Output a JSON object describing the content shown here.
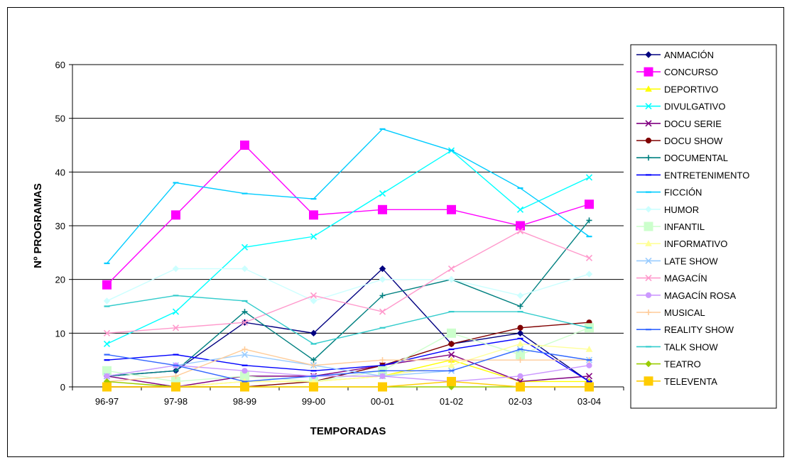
{
  "chart_data": {
    "type": "line",
    "title": "",
    "xlabel": "TEMPORADAS",
    "ylabel": "Nº PROGRAMAS",
    "ylim": [
      0,
      60
    ],
    "yticks": [
      0,
      10,
      20,
      30,
      40,
      50,
      60
    ],
    "grid": "horizontal",
    "legend_position": "right",
    "categories": [
      "96-97",
      "97-98",
      "98-99",
      "99-00",
      "00-01",
      "01-02",
      "02-03",
      "03-04"
    ],
    "series": [
      {
        "name": "ANMACIÓN",
        "color": "#000080",
        "marker": "diamond",
        "values": [
          2,
          3,
          12,
          10,
          22,
          8,
          10,
          1
        ]
      },
      {
        "name": "CONCURSO",
        "color": "#ff00ff",
        "marker": "square",
        "values": [
          19,
          32,
          45,
          32,
          33,
          33,
          30,
          34
        ]
      },
      {
        "name": "DEPORTIVO",
        "color": "#ffff00",
        "marker": "triangle",
        "values": [
          0,
          0,
          1,
          1,
          2,
          5,
          1,
          1
        ]
      },
      {
        "name": "DIVULGATIVO",
        "color": "#00ffff",
        "marker": "x",
        "values": [
          8,
          14,
          26,
          28,
          36,
          44,
          33,
          39
        ]
      },
      {
        "name": "DOCU SERIE",
        "color": "#800080",
        "marker": "x",
        "values": [
          2,
          0,
          2,
          2,
          4,
          6,
          1,
          2
        ]
      },
      {
        "name": "DOCU SHOW",
        "color": "#800000",
        "marker": "circle",
        "values": [
          0,
          0,
          0,
          1,
          4,
          8,
          11,
          12
        ]
      },
      {
        "name": "DOCUMENTAL",
        "color": "#008080",
        "marker": "plus",
        "values": [
          2,
          3,
          14,
          5,
          17,
          20,
          15,
          31
        ]
      },
      {
        "name": "ENTRETENIMENTO",
        "color": "#0000ff",
        "marker": "dash",
        "values": [
          5,
          6,
          4,
          3,
          4,
          7,
          9,
          1
        ]
      },
      {
        "name": "FICCIÓN",
        "color": "#00ccff",
        "marker": "dash",
        "values": [
          23,
          38,
          36,
          35,
          48,
          44,
          37,
          28
        ]
      },
      {
        "name": "HUMOR",
        "color": "#ccffff",
        "marker": "diamond",
        "values": [
          16,
          22,
          22,
          16,
          20,
          20,
          17,
          21
        ]
      },
      {
        "name": "INFANTIL",
        "color": "#ccffcc",
        "marker": "square",
        "values": [
          3,
          1,
          2,
          1,
          3,
          10,
          6,
          11
        ]
      },
      {
        "name": "INFORMATIVO",
        "color": "#ffff99",
        "marker": "triangle",
        "values": [
          1,
          0,
          1,
          1,
          2,
          4,
          8,
          7
        ]
      },
      {
        "name": "LATE SHOW",
        "color": "#99ccff",
        "marker": "x",
        "values": [
          2,
          4,
          6,
          4,
          2,
          3,
          7,
          5
        ]
      },
      {
        "name": "MAGACÍN",
        "color": "#ff99cc",
        "marker": "x",
        "values": [
          10,
          11,
          12,
          17,
          14,
          22,
          29,
          24
        ]
      },
      {
        "name": "MAGACÍN ROSA",
        "color": "#cc99ff",
        "marker": "circle",
        "values": [
          2,
          4,
          3,
          2,
          2,
          1,
          2,
          4
        ]
      },
      {
        "name": "MUSICAL",
        "color": "#ffcc99",
        "marker": "plus",
        "values": [
          1,
          2,
          7,
          4,
          5,
          5,
          5,
          5
        ]
      },
      {
        "name": "REALITY SHOW",
        "color": "#3366ff",
        "marker": "dash",
        "values": [
          6,
          4,
          1,
          2,
          3,
          3,
          7,
          5
        ]
      },
      {
        "name": "TALK SHOW",
        "color": "#33cccc",
        "marker": "dash",
        "values": [
          15,
          17,
          16,
          8,
          11,
          14,
          14,
          11
        ]
      },
      {
        "name": "TEATRO",
        "color": "#99cc00",
        "marker": "diamond",
        "values": [
          1,
          0,
          0,
          0,
          0,
          0,
          0,
          0
        ]
      },
      {
        "name": "TELEVENTA",
        "color": "#ffcc00",
        "marker": "square",
        "values": [
          0,
          0,
          0,
          0,
          0,
          1,
          0,
          0
        ]
      }
    ]
  }
}
